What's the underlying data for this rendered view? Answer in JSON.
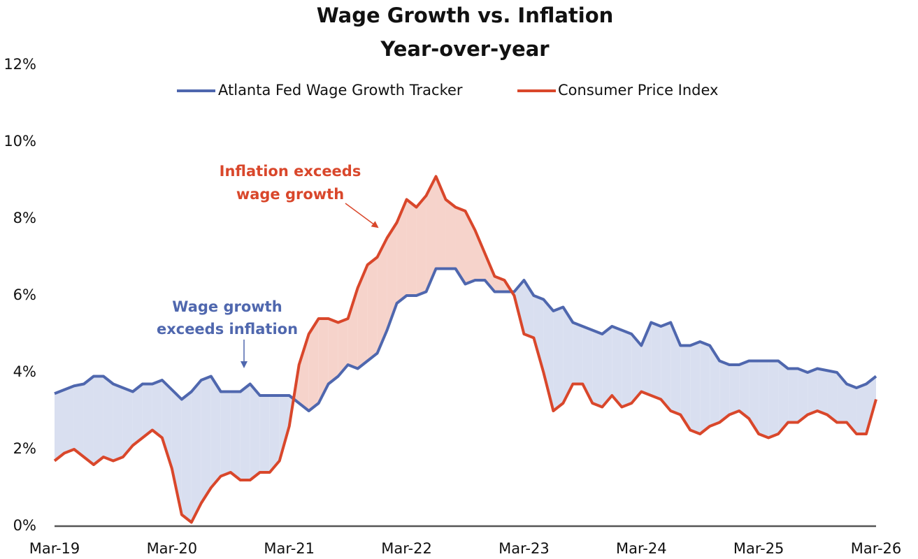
{
  "chart_data": {
    "type": "line",
    "title": "Wage Growth vs. Inflation",
    "subtitle": "Year-over-year",
    "categories": [
      "Mar-19",
      null,
      null,
      null,
      null,
      null,
      null,
      null,
      null,
      null,
      null,
      null,
      "Mar-20",
      null,
      null,
      null,
      null,
      null,
      null,
      null,
      null,
      null,
      null,
      null,
      "Mar-21",
      null,
      null,
      null,
      null,
      null,
      null,
      null,
      null,
      null,
      null,
      null,
      "Mar-22",
      null,
      null,
      null,
      null,
      null,
      null,
      null,
      null,
      null,
      null,
      null,
      "Mar-23",
      null,
      null,
      null,
      null,
      null,
      null,
      null,
      null,
      null,
      null,
      null,
      "Mar-24",
      null,
      null,
      null,
      null,
      null,
      null,
      null,
      null,
      null,
      null,
      null,
      "Mar-25",
      null,
      null,
      null,
      null,
      null,
      null,
      null,
      null,
      null,
      null,
      null,
      "Mar-26"
    ],
    "series": [
      {
        "name": "Atlanta Fed Wage Growth Tracker",
        "color": "#4f67ae",
        "values": [
          3.45,
          3.55,
          3.65,
          3.7,
          3.9,
          3.9,
          3.7,
          3.6,
          3.5,
          3.7,
          3.7,
          3.8,
          3.55,
          3.3,
          3.5,
          3.8,
          3.9,
          3.5,
          3.5,
          3.5,
          3.7,
          3.4,
          3.4,
          3.4,
          3.4,
          3.2,
          3.0,
          3.2,
          3.7,
          3.9,
          4.2,
          4.1,
          4.3,
          4.5,
          5.1,
          5.8,
          6.0,
          6.0,
          6.1,
          6.7,
          6.7,
          6.7,
          6.3,
          6.4,
          6.4,
          6.1,
          6.1,
          6.1,
          6.4,
          6.0,
          5.9,
          5.6,
          5.7,
          5.3,
          5.2,
          5.1,
          5.0,
          5.2,
          5.1,
          5.0,
          4.7,
          5.3,
          5.2,
          5.3,
          4.7,
          4.7,
          4.8,
          4.7,
          4.3,
          4.2,
          4.2,
          4.3,
          4.3,
          4.3,
          4.3,
          4.1,
          4.1,
          4.0,
          4.1,
          4.05,
          4.0,
          3.7,
          3.6,
          3.7,
          3.9
        ]
      },
      {
        "name": "Consumer Price Index",
        "color": "#d9472b",
        "values": [
          1.7,
          1.9,
          2.0,
          1.8,
          1.6,
          1.8,
          1.7,
          1.8,
          2.1,
          2.3,
          2.5,
          2.3,
          1.5,
          0.3,
          0.1,
          0.6,
          1.0,
          1.3,
          1.4,
          1.2,
          1.2,
          1.4,
          1.4,
          1.7,
          2.6,
          4.2,
          5.0,
          5.4,
          5.4,
          5.3,
          5.4,
          6.2,
          6.8,
          7.0,
          7.5,
          7.9,
          8.5,
          8.3,
          8.6,
          9.1,
          8.5,
          8.3,
          8.2,
          7.7,
          7.1,
          6.5,
          6.4,
          6.0,
          5.0,
          4.9,
          4.0,
          3.0,
          3.2,
          3.7,
          3.7,
          3.2,
          3.1,
          3.4,
          3.1,
          3.2,
          3.5,
          3.4,
          3.3,
          3.0,
          2.9,
          2.5,
          2.4,
          2.6,
          2.7,
          2.9,
          3.0,
          2.8,
          2.4,
          2.3,
          2.4,
          2.7,
          2.7,
          2.9,
          3.0,
          2.9,
          2.7,
          2.7,
          2.4,
          2.4,
          3.3
        ]
      }
    ],
    "ylim": [
      0,
      12
    ],
    "yticks": [
      {
        "value": 0,
        "label": "0%"
      },
      {
        "value": 2,
        "label": "2%"
      },
      {
        "value": 4,
        "label": "4%"
      },
      {
        "value": 6,
        "label": "6%"
      },
      {
        "value": 8,
        "label": "8%"
      },
      {
        "value": 10,
        "label": "10%"
      },
      {
        "value": 12,
        "label": "12%"
      }
    ],
    "grid": false,
    "legend": "top",
    "fill_colors": {
      "above": "#d9dff0",
      "below": "#f6d3cb"
    },
    "annotations": [
      {
        "lines": [
          "Inflation exceeds",
          "wage growth"
        ],
        "color": "#d9472b"
      },
      {
        "lines": [
          "Wage growth",
          "exceeds inflation"
        ],
        "color": "#4f67ae"
      }
    ]
  }
}
